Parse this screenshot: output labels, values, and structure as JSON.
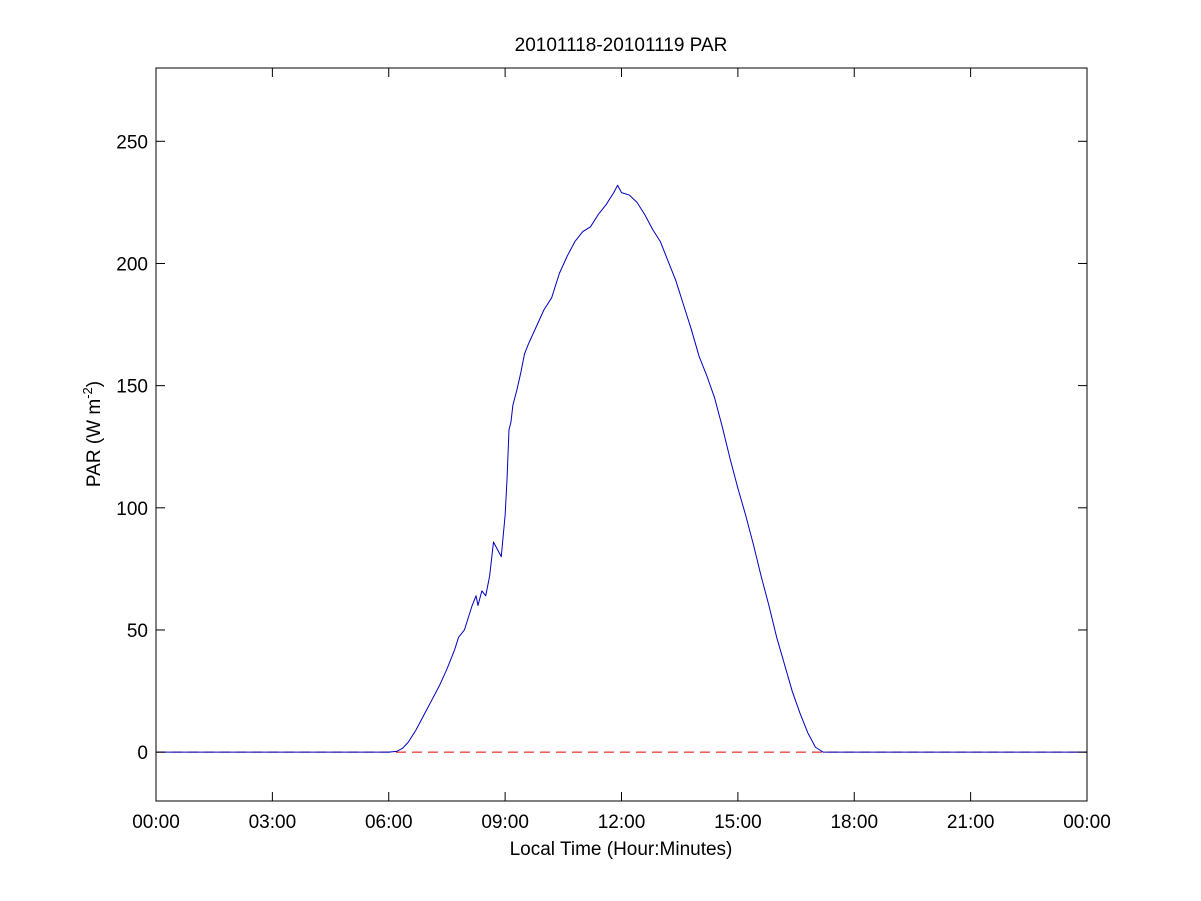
{
  "chart_data": {
    "type": "line",
    "title": "20101118-20101119 PAR",
    "xlabel": "Local Time (Hour:Minutes)",
    "ylabel": {
      "main": "PAR (W m",
      "superscript": "-2",
      "close": ")"
    },
    "xlim_hours": [
      0,
      24
    ],
    "ylim": [
      -20,
      280
    ],
    "x_ticks": [
      {
        "hours": 0,
        "label": "00:00"
      },
      {
        "hours": 3,
        "label": "03:00"
      },
      {
        "hours": 6,
        "label": "06:00"
      },
      {
        "hours": 9,
        "label": "09:00"
      },
      {
        "hours": 12,
        "label": "12:00"
      },
      {
        "hours": 15,
        "label": "15:00"
      },
      {
        "hours": 18,
        "label": "18:00"
      },
      {
        "hours": 21,
        "label": "21:00"
      },
      {
        "hours": 24,
        "label": "00:00"
      }
    ],
    "y_ticks": [
      0,
      50,
      100,
      150,
      200,
      250
    ],
    "grid": false,
    "legend": "none",
    "colors": {
      "series": "#0000c0",
      "baseline": "#e00000",
      "axes": "#000000"
    },
    "series": [
      {
        "color": "#0000c0",
        "style": "solid",
        "points": [
          [
            0.0,
            0
          ],
          [
            6.0,
            0
          ],
          [
            6.2,
            0.3
          ],
          [
            6.35,
            1.5
          ],
          [
            6.5,
            4
          ],
          [
            6.7,
            9
          ],
          [
            6.9,
            15
          ],
          [
            7.1,
            21
          ],
          [
            7.3,
            27
          ],
          [
            7.5,
            34
          ],
          [
            7.7,
            42
          ],
          [
            7.8,
            47
          ],
          [
            7.95,
            50
          ],
          [
            8.05,
            55
          ],
          [
            8.15,
            60
          ],
          [
            8.25,
            64
          ],
          [
            8.3,
            60
          ],
          [
            8.4,
            66
          ],
          [
            8.5,
            64
          ],
          [
            8.6,
            72
          ],
          [
            8.7,
            86
          ],
          [
            8.8,
            83
          ],
          [
            8.9,
            80
          ],
          [
            9.0,
            97
          ],
          [
            9.05,
            112
          ],
          [
            9.1,
            132
          ],
          [
            9.15,
            135
          ],
          [
            9.2,
            142
          ],
          [
            9.3,
            148
          ],
          [
            9.4,
            155
          ],
          [
            9.5,
            163
          ],
          [
            9.6,
            167
          ],
          [
            9.8,
            174
          ],
          [
            10.0,
            181
          ],
          [
            10.2,
            186
          ],
          [
            10.4,
            196
          ],
          [
            10.6,
            203
          ],
          [
            10.8,
            209
          ],
          [
            11.0,
            213
          ],
          [
            11.2,
            215
          ],
          [
            11.4,
            220
          ],
          [
            11.6,
            224
          ],
          [
            11.8,
            229
          ],
          [
            11.9,
            232
          ],
          [
            12.0,
            229
          ],
          [
            12.2,
            228
          ],
          [
            12.4,
            225
          ],
          [
            12.6,
            220
          ],
          [
            12.8,
            214
          ],
          [
            13.0,
            209
          ],
          [
            13.2,
            201
          ],
          [
            13.4,
            193
          ],
          [
            13.6,
            183
          ],
          [
            13.8,
            173
          ],
          [
            14.0,
            162
          ],
          [
            14.2,
            154
          ],
          [
            14.4,
            145
          ],
          [
            14.6,
            133
          ],
          [
            14.8,
            120
          ],
          [
            15.0,
            108
          ],
          [
            15.2,
            97
          ],
          [
            15.4,
            85
          ],
          [
            15.6,
            72
          ],
          [
            15.8,
            60
          ],
          [
            16.0,
            47
          ],
          [
            16.2,
            36
          ],
          [
            16.4,
            25
          ],
          [
            16.6,
            16
          ],
          [
            16.8,
            8
          ],
          [
            17.0,
            2
          ],
          [
            17.2,
            0
          ],
          [
            24.0,
            0
          ]
        ]
      },
      {
        "color": "#e00000",
        "style": "dashed",
        "points": [
          [
            0,
            0
          ],
          [
            24,
            0
          ]
        ]
      }
    ]
  }
}
